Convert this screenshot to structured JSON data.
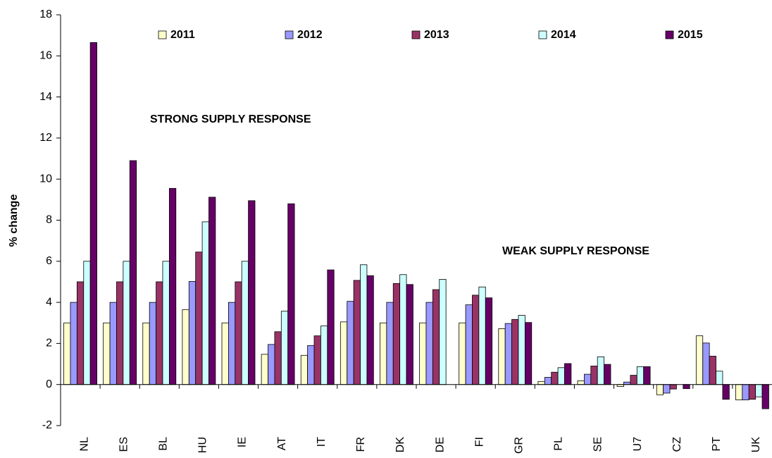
{
  "chart_data": {
    "type": "bar",
    "y_label": "% change",
    "annotations": [
      "STRONG SUPPLY RESPONSE",
      "WEAK SUPPLY RESPONSE"
    ],
    "categories": [
      "NL",
      "ES",
      "BL",
      "HU",
      "IE",
      "AT",
      "IT",
      "FR",
      "DK",
      "DE",
      "FI",
      "GR",
      "PL",
      "SE",
      "U7",
      "CZ",
      "PT",
      "UK"
    ],
    "series": [
      {
        "name": "2011",
        "color": "#ffffcc",
        "values": [
          3,
          3,
          3,
          3.65,
          3,
          1.47,
          1.42,
          3.05,
          3,
          3,
          3,
          2.72,
          0.15,
          0.18,
          -0.1,
          -0.5,
          2.37,
          -0.75
        ]
      },
      {
        "name": "2012",
        "color": "#9999ff",
        "values": [
          4,
          4,
          4,
          5.02,
          4,
          1.95,
          1.9,
          4.05,
          4,
          4,
          3.88,
          2.97,
          0.35,
          0.5,
          0.12,
          -0.42,
          2.02,
          -0.75
        ]
      },
      {
        "name": "2013",
        "color": "#993366",
        "values": [
          5,
          5,
          5,
          6.45,
          5,
          2.57,
          2.37,
          5.07,
          4.92,
          4.62,
          4.35,
          3.17,
          0.6,
          0.9,
          0.45,
          -0.22,
          1.38,
          -0.72
        ]
      },
      {
        "name": "2014",
        "color": "#ccffff",
        "values": [
          6,
          6,
          6,
          7.92,
          6,
          3.57,
          2.85,
          5.83,
          5.35,
          5.12,
          4.75,
          3.37,
          0.82,
          1.35,
          0.87,
          0,
          0.65,
          -0.6
        ]
      },
      {
        "name": "2015",
        "color": "#660066",
        "values": [
          16.65,
          10.9,
          9.55,
          9.12,
          8.95,
          8.8,
          5.58,
          5.3,
          4.87,
          null,
          4.22,
          3.02,
          1.02,
          0.98,
          0.87,
          -0.2,
          -0.72,
          -1.18
        ]
      }
    ],
    "ylim": [
      -2,
      18
    ],
    "yticks": [
      -2,
      0,
      2,
      4,
      6,
      8,
      10,
      12,
      14,
      16,
      18
    ],
    "grid": false,
    "legend": "top"
  }
}
